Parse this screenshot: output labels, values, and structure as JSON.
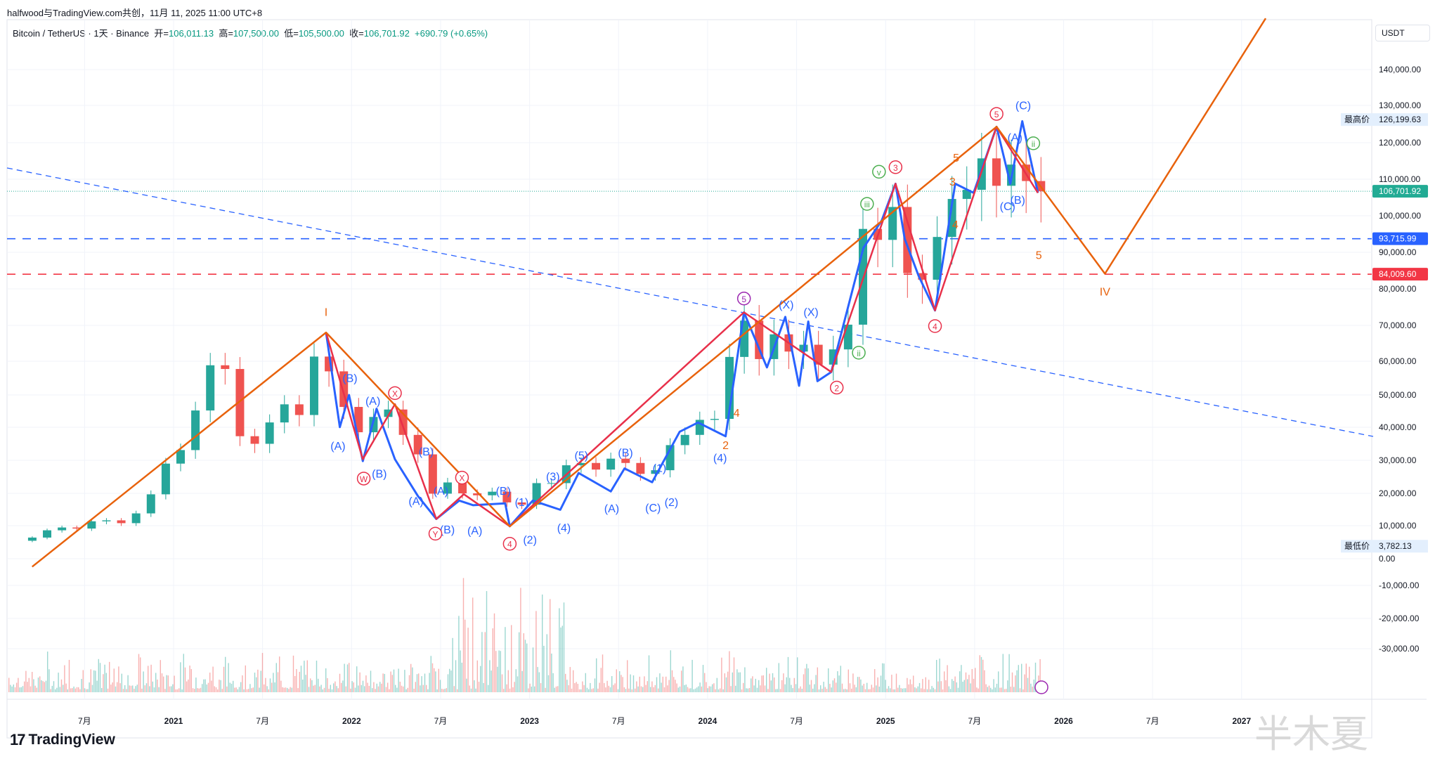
{
  "credit": "halfwood与TradingView.com共创，11月 11, 2025 11:00 UTC+8",
  "symbol": {
    "name": "Bitcoin / TetherUS",
    "interval": "1天",
    "exchange": "Binance",
    "open_label": "开=",
    "open": "106,011.13",
    "high_label": "高=",
    "high": "107,500.00",
    "low_label": "低=",
    "low": "105,500.00",
    "close_label": "收=",
    "close": "106,701.92",
    "change": "+690.79 (+0.65%)"
  },
  "currency_button": "USDT",
  "logo": "TradingView",
  "watermark": "半木夏",
  "colors": {
    "up": "#26a69a",
    "down": "#ef5350",
    "orange": "#e8620c",
    "red": "#e8304a",
    "blue": "#2962ff",
    "green": "#4caf50",
    "purple": "#9c27b0",
    "last_price": "#22ab94"
  },
  "chart_data": {
    "type": "candlestick",
    "title": "",
    "y_ticks": [
      "140,000.00",
      "130,000.00",
      "120,000.00",
      "110,000.00",
      "100,000.00",
      "90,000.00",
      "80,000.00",
      "70,000.00",
      "60,000.00",
      "50,000.00",
      "40,000.00",
      "30,000.00",
      "20,000.00",
      "10,000.00",
      "0.00",
      "-10,000.00",
      "-20,000.00",
      "-30,000.00"
    ],
    "y_tick_values": [
      140000,
      130000,
      120000,
      110000,
      100000,
      90000,
      80000,
      70000,
      60000,
      50000,
      40000,
      30000,
      20000,
      10000,
      0,
      -10000,
      -20000,
      -30000
    ],
    "x_ticks": [
      "7月",
      "2021",
      "7月",
      "2022",
      "7月",
      "2023",
      "7月",
      "2024",
      "7月",
      "2025",
      "7月",
      "2026",
      "7月",
      "2027"
    ],
    "x_tick_dates": [
      "2020-07",
      "2021-01",
      "2021-07",
      "2022-01",
      "2022-07",
      "2023-01",
      "2023-07",
      "2024-01",
      "2024-07",
      "2025-01",
      "2025-07",
      "2026-01",
      "2026-07",
      "2027-01"
    ],
    "months": [
      "2020-03",
      "2020-04",
      "2020-05",
      "2020-06",
      "2020-07",
      "2020-08",
      "2020-09",
      "2020-10",
      "2020-11",
      "2020-12",
      "2021-01",
      "2021-02",
      "2021-03",
      "2021-04",
      "2021-05",
      "2021-06",
      "2021-07",
      "2021-08",
      "2021-09",
      "2021-10",
      "2021-11",
      "2021-12",
      "2022-01",
      "2022-02",
      "2022-03",
      "2022-04",
      "2022-05",
      "2022-06",
      "2022-07",
      "2022-08",
      "2022-09",
      "2022-10",
      "2022-11",
      "2022-12",
      "2023-01",
      "2023-02",
      "2023-03",
      "2023-04",
      "2023-05",
      "2023-06",
      "2023-07",
      "2023-08",
      "2023-09",
      "2023-10",
      "2023-11",
      "2023-12",
      "2024-01",
      "2024-02",
      "2024-03",
      "2024-04",
      "2024-05",
      "2024-06",
      "2024-07",
      "2024-08",
      "2024-09",
      "2024-10",
      "2024-11",
      "2024-12",
      "2025-01",
      "2025-02",
      "2025-03",
      "2025-04",
      "2025-05",
      "2025-06",
      "2025-07",
      "2025-08",
      "2025-09",
      "2025-10",
      "2025-11"
    ],
    "close": [
      6400,
      8600,
      9450,
      9130,
      11350,
      11650,
      10780,
      13800,
      19700,
      29000,
      33100,
      45200,
      58800,
      57700,
      37300,
      35000,
      41500,
      47100,
      43800,
      61300,
      57000,
      46300,
      38500,
      43200,
      45500,
      37700,
      31800,
      19900,
      23300,
      20000,
      19400,
      20500,
      17200,
      16500,
      23100,
      23100,
      28500,
      29200,
      27200,
      30500,
      29200,
      25900,
      27000,
      34600,
      37700,
      42300,
      42600,
      61200,
      71300,
      60600,
      67500,
      62700,
      64600,
      59000,
      63300,
      70200,
      96400,
      93400,
      102400,
      84300,
      82500,
      94200,
      104600,
      107100,
      115700,
      108200,
      114000,
      109500,
      106701.92
    ],
    "price_labels": [
      {
        "label": "最高价",
        "value": "126,199.63",
        "price": 126199.63,
        "bg": "#e3effd",
        "fg": "#131722"
      },
      {
        "label": "",
        "value": "106,701.92",
        "price": 106701.92,
        "bg": "#22ab94",
        "fg": "#ffffff"
      },
      {
        "label": "",
        "value": "93,715.99",
        "price": 93715.99,
        "bg": "#2962ff",
        "fg": "#ffffff"
      },
      {
        "label": "",
        "value": "84,009.60",
        "price": 84009.6,
        "bg": "#f23645",
        "fg": "#ffffff"
      },
      {
        "label": "最低价",
        "value": "3,782.13",
        "price": 3782.13,
        "bg": "#e3effd",
        "fg": "#131722"
      }
    ],
    "horizontal_lines": [
      {
        "price": 93715.99,
        "color": "#2962ff",
        "style": "dashed"
      },
      {
        "price": 84009.6,
        "color": "#f23645",
        "style": "dashed"
      },
      {
        "price": 106701.92,
        "color": "#22ab94",
        "style": "dotted"
      }
    ],
    "wave_labels": [
      {
        "t": "I",
        "c": "orange"
      },
      {
        "t": "IV",
        "c": "orange"
      },
      {
        "t": "(B)",
        "c": "blue"
      },
      {
        "t": "(A)",
        "c": "blue"
      },
      {
        "t": "(A)",
        "c": "blue"
      },
      {
        "t": "(B)",
        "c": "blue"
      },
      {
        "t": "(B)",
        "c": "blue"
      },
      {
        "t": "(A)",
        "c": "blue"
      },
      {
        "t": "(A)",
        "c": "blue"
      },
      {
        "t": "(B)",
        "c": "blue"
      },
      {
        "t": "(A)",
        "c": "blue"
      },
      {
        "t": "(B)",
        "c": "blue"
      },
      {
        "t": "(1)",
        "c": "blue"
      },
      {
        "t": "(2)",
        "c": "blue"
      },
      {
        "t": "(3)",
        "c": "blue"
      },
      {
        "t": "(4)",
        "c": "blue"
      },
      {
        "t": "(5)",
        "c": "blue"
      },
      {
        "t": "(A)",
        "c": "blue"
      },
      {
        "t": "(B)",
        "c": "blue"
      },
      {
        "t": "(1)",
        "c": "blue"
      },
      {
        "t": "(C)",
        "c": "blue"
      },
      {
        "t": "(2)",
        "c": "blue"
      },
      {
        "t": "(4)",
        "c": "blue"
      },
      {
        "t": "(X)",
        "c": "blue"
      },
      {
        "t": "(X)",
        "c": "blue"
      },
      {
        "t": "(C)",
        "c": "blue"
      },
      {
        "t": "(A)",
        "c": "blue"
      },
      {
        "t": "(B)",
        "c": "blue"
      },
      {
        "t": "(C)",
        "c": "blue"
      },
      {
        "t": "3",
        "c": "orange"
      },
      {
        "t": "5",
        "c": "orange"
      },
      {
        "t": "4",
        "c": "orange"
      },
      {
        "t": "4",
        "c": "orange"
      },
      {
        "t": "2",
        "c": "orange"
      },
      {
        "t": "5",
        "c": "orange"
      },
      {
        "t": "3",
        "c": "red",
        "circle": true
      },
      {
        "t": "4",
        "c": "red",
        "circle": true
      },
      {
        "t": "5",
        "c": "red",
        "circle": true
      },
      {
        "t": "2",
        "c": "red",
        "circle": true
      },
      {
        "t": "4",
        "c": "red",
        "circle": true
      },
      {
        "t": "X",
        "c": "red",
        "circle": true
      },
      {
        "t": "W",
        "c": "red",
        "circle": true
      },
      {
        "t": "Y",
        "c": "red",
        "circle": true
      },
      {
        "t": "X",
        "c": "red",
        "circle": true
      },
      {
        "t": "v",
        "c": "green",
        "circle": true
      },
      {
        "t": "iii",
        "c": "green",
        "circle": true
      },
      {
        "t": "ii",
        "c": "green",
        "circle": true
      },
      {
        "t": "ii",
        "c": "green",
        "circle": true
      },
      {
        "t": "5",
        "c": "purple",
        "circle": true
      }
    ]
  }
}
